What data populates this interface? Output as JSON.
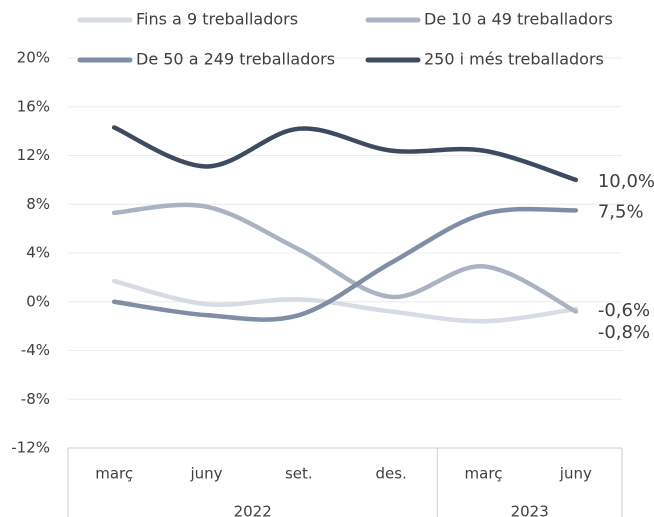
{
  "chart_data": {
    "type": "line",
    "categories": [
      "març",
      "juny",
      "set.",
      "des.",
      "març",
      "juny"
    ],
    "group_labels": [
      "2022",
      "2023"
    ],
    "group_sizes": [
      4,
      2
    ],
    "ylim": [
      -12,
      20
    ],
    "yticks": [
      {
        "value": -12,
        "label": "-12%"
      },
      {
        "value": -8,
        "label": "-8%"
      },
      {
        "value": -4,
        "label": "-4%"
      },
      {
        "value": 0,
        "label": "0%"
      },
      {
        "value": 4,
        "label": "4%"
      },
      {
        "value": 8,
        "label": "8%"
      },
      {
        "value": 12,
        "label": "12%"
      },
      {
        "value": 16,
        "label": "16%"
      },
      {
        "value": 20,
        "label": "20%"
      }
    ],
    "grid": true,
    "legend": "top",
    "series": [
      {
        "name": "Fins a 9 treballadors",
        "color": "#d6dbe4",
        "values": [
          1.7,
          -0.2,
          0.2,
          -0.8,
          -1.6,
          -0.6
        ],
        "value_labels": [
          null,
          null,
          null,
          null,
          null,
          "-0,6%"
        ]
      },
      {
        "name": "De 10 a 49 treballadors",
        "color": "#a9b3c3",
        "values": [
          7.3,
          7.8,
          4.3,
          0.4,
          2.9,
          -0.8
        ],
        "value_labels": [
          null,
          null,
          null,
          null,
          null,
          "-0,8%"
        ]
      },
      {
        "name": "De 50 a 249 treballadors",
        "color": "#7f8ea6",
        "values": [
          0,
          -1.1,
          -1.1,
          3.2,
          7.2,
          7.5
        ],
        "value_labels": [
          null,
          null,
          null,
          null,
          null,
          "7,5%"
        ]
      },
      {
        "name": "250 i més treballadors",
        "color": "#3d4a60",
        "values": [
          14.3,
          11.1,
          14.2,
          12.4,
          12.4,
          10.0
        ],
        "value_labels": [
          null,
          null,
          null,
          null,
          null,
          "10,0%"
        ]
      }
    ]
  }
}
